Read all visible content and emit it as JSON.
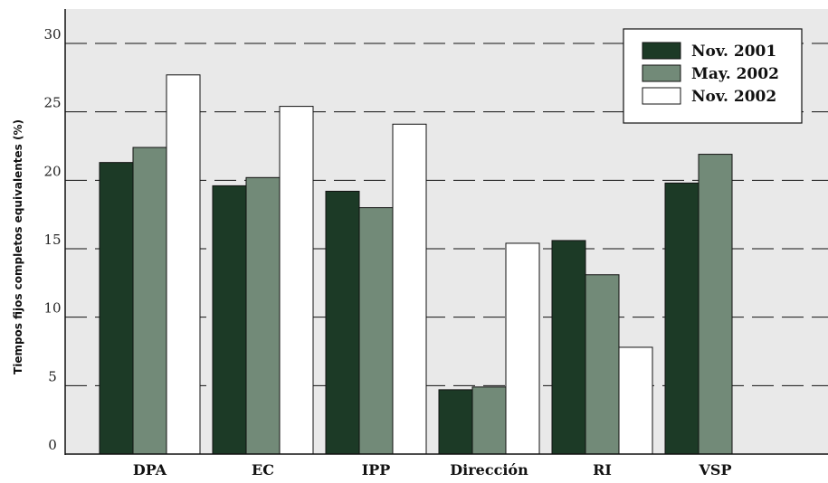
{
  "chart_data": {
    "type": "bar",
    "title": "",
    "xlabel": "",
    "ylabel": "Tiempos fijos completos equivalentes (%)",
    "ylim": [
      0,
      30
    ],
    "yticks": [
      "0",
      "5",
      "10",
      "15",
      "20",
      "25",
      "30"
    ],
    "categories": [
      "DPA",
      "EC",
      "IPP",
      "Dirección",
      "RI",
      "VSP"
    ],
    "series": [
      {
        "name": "Nov. 2001",
        "color": "#1c3a26",
        "values": [
          21.3,
          19.6,
          19.2,
          4.7,
          15.6,
          19.8
        ]
      },
      {
        "name": "May. 2002",
        "color": "#728a78",
        "values": [
          22.4,
          20.2,
          18.0,
          4.9,
          13.1,
          21.9
        ]
      },
      {
        "name": "Nov. 2002",
        "color": "#ffffff",
        "values": [
          27.7,
          25.4,
          24.1,
          15.4,
          7.8,
          null
        ]
      }
    ],
    "plot_background": "#e9e9e9",
    "grid": "dashed horizontal",
    "legend_position": "top-right"
  }
}
